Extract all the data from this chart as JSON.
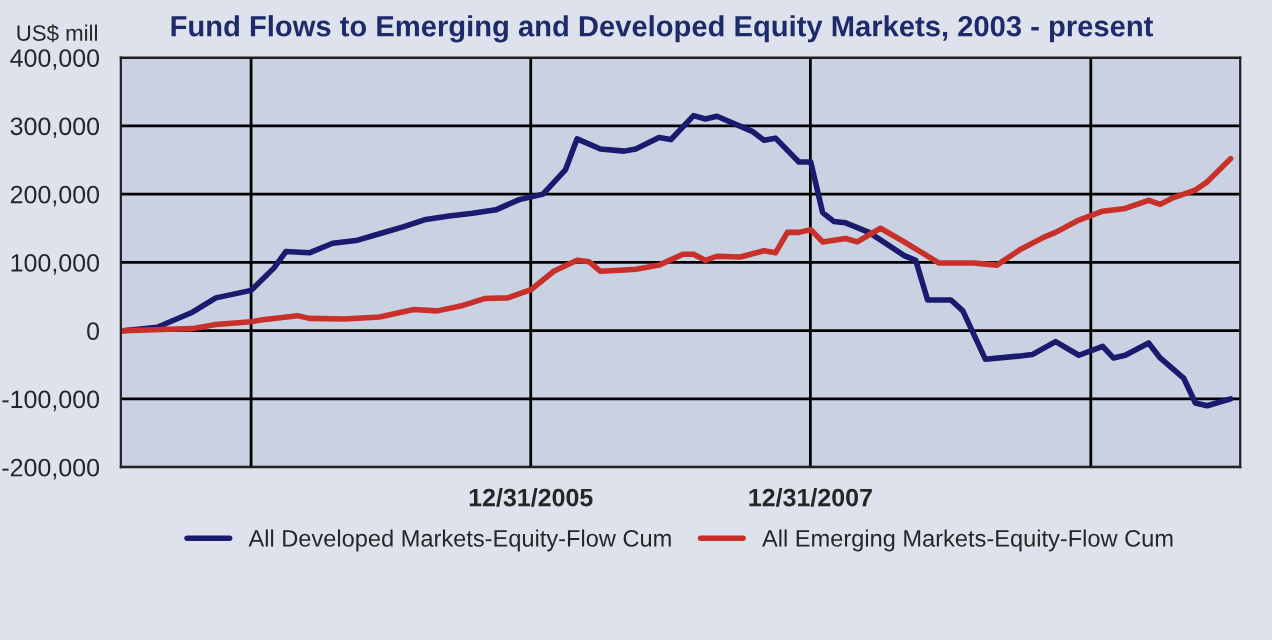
{
  "chart_data": {
    "type": "line",
    "title": "Fund Flows to Emerging and Developed Equity Markets, 2003 - present",
    "ylabel": "US$ mill",
    "xlim": [
      "2003-01-26",
      "2011-01-26"
    ],
    "xticks": [
      {
        "value": "2004-01-01",
        "label": null
      },
      {
        "value": "2005-12-31",
        "label": "12/31/2005"
      },
      {
        "value": "2007-12-31",
        "label": "12/31/2007"
      },
      {
        "value": "2010-01-01",
        "label": null
      }
    ],
    "ylim": [
      -200000,
      400000
    ],
    "yticks": [
      {
        "value": -200000,
        "label": "-200,000"
      },
      {
        "value": -100000,
        "label": "-100,000"
      },
      {
        "value": 0,
        "label": "0"
      },
      {
        "value": 100000,
        "label": "100,000"
      },
      {
        "value": 200000,
        "label": "200,000"
      },
      {
        "value": 300000,
        "label": "300,000"
      },
      {
        "value": 400000,
        "label": "400,000"
      }
    ],
    "grid": true,
    "legend": "bottom",
    "series": [
      {
        "name": "All Developed Markets-Equity-Flow Cum",
        "color": "#1a1a6e",
        "x": [
          "2003-02",
          "2003-05",
          "2003-08",
          "2003-10",
          "2004-01",
          "2004-03",
          "2004-04",
          "2004-06",
          "2004-08",
          "2004-10",
          "2004-12",
          "2005-02",
          "2005-04",
          "2005-06",
          "2005-08",
          "2005-10",
          "2005-12",
          "2006-02",
          "2006-04",
          "2006-05",
          "2006-07",
          "2006-09",
          "2006-10",
          "2006-12",
          "2007-01",
          "2007-03",
          "2007-04",
          "2007-05",
          "2007-08",
          "2007-09",
          "2007-10",
          "2007-12",
          "2008-01",
          "2008-02",
          "2008-03",
          "2008-04",
          "2008-06",
          "2008-09",
          "2008-10",
          "2008-11",
          "2009-01",
          "2009-02",
          "2009-04",
          "2009-07",
          "2009-08",
          "2009-10",
          "2009-12",
          "2010-02",
          "2010-03",
          "2010-04",
          "2010-06",
          "2010-07",
          "2010-09",
          "2010-10",
          "2010-11",
          "2011-01"
        ],
        "values": [
          0,
          5000,
          27000,
          48000,
          59000,
          92000,
          116000,
          114000,
          128000,
          132000,
          142000,
          152000,
          163000,
          168000,
          172000,
          177000,
          192000,
          200000,
          236000,
          281000,
          266000,
          263000,
          266000,
          283000,
          280000,
          315000,
          310000,
          314000,
          292000,
          279000,
          282000,
          247000,
          247000,
          173000,
          160000,
          158000,
          144000,
          110000,
          103000,
          45000,
          45000,
          29000,
          -42000,
          -37000,
          -35000,
          -16000,
          -36000,
          -23000,
          -40000,
          -36000,
          -18000,
          -40000,
          -70000,
          -106000,
          -110000,
          -100000
        ]
      },
      {
        "name": "All Emerging Markets-Equity-Flow Cum",
        "color": "#c8302a",
        "x": [
          "2003-02",
          "2003-06",
          "2003-08",
          "2003-10",
          "2004-01",
          "2004-02",
          "2004-05",
          "2004-06",
          "2004-09",
          "2004-12",
          "2005-03",
          "2005-05",
          "2005-07",
          "2005-09",
          "2005-11",
          "2006-01",
          "2006-03",
          "2006-05",
          "2006-06",
          "2006-07",
          "2006-09",
          "2006-10",
          "2006-12",
          "2007-02",
          "2007-03",
          "2007-04",
          "2007-05",
          "2007-07",
          "2007-09",
          "2007-10",
          "2007-11",
          "2007-12",
          "2008-01",
          "2008-02",
          "2008-04",
          "2008-05",
          "2008-07",
          "2008-09",
          "2008-12",
          "2009-03",
          "2009-05",
          "2009-07",
          "2009-09",
          "2009-10",
          "2009-12",
          "2010-02",
          "2010-04",
          "2010-06",
          "2010-07",
          "2010-08",
          "2010-10",
          "2010-11",
          "2011-01"
        ],
        "values": [
          0,
          2000,
          3000,
          9000,
          13000,
          16000,
          22000,
          18000,
          17000,
          20000,
          31000,
          29000,
          36000,
          47000,
          48000,
          60000,
          87000,
          103000,
          101000,
          87000,
          89000,
          90000,
          96000,
          112000,
          112000,
          103000,
          109000,
          108000,
          117000,
          114000,
          144000,
          144000,
          148000,
          130000,
          135000,
          130000,
          150000,
          130000,
          99000,
          99000,
          96000,
          119000,
          137000,
          144000,
          162000,
          175000,
          179000,
          191000,
          185000,
          194000,
          206000,
          218000,
          252000
        ]
      }
    ]
  }
}
